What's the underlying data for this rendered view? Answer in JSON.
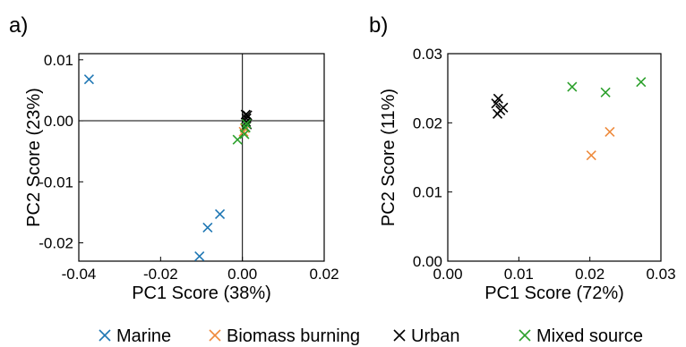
{
  "chart_data": [
    {
      "type": "scatter",
      "panel_label": "a)",
      "xlabel": "PC1 Score (38%)",
      "ylabel": "PC2 Score (23%)",
      "xlim": [
        -0.04,
        0.02
      ],
      "ylim": [
        -0.023,
        0.011
      ],
      "xticks": [
        -0.04,
        -0.02,
        0.0,
        0.02
      ],
      "xtick_labels": [
        "-0.04",
        "-0.02",
        "0.00",
        "0.02"
      ],
      "yticks": [
        0.01,
        0.0,
        -0.01,
        -0.02
      ],
      "ytick_labels": [
        "0.01",
        "0.00",
        "-0.01",
        "-0.02"
      ],
      "zero_lines": true,
      "grid": false,
      "series": [
        {
          "name": "Marine",
          "color": "#1f77b4",
          "points": [
            [
              -0.0375,
              0.0068
            ],
            [
              -0.0055,
              -0.0153
            ],
            [
              -0.0085,
              -0.0175
            ],
            [
              -0.0105,
              -0.0222
            ]
          ]
        },
        {
          "name": "Biomass burning",
          "color": "#ee8a3c",
          "points": [
            [
              0.0003,
              -0.0018
            ],
            [
              0.0006,
              -0.0012
            ]
          ]
        },
        {
          "name": "Urban",
          "color": "#000000",
          "points": [
            [
              0.0008,
              0.001
            ],
            [
              0.0012,
              0.0009
            ],
            [
              0.001,
              0.0004
            ],
            [
              0.0009,
              -0.0002
            ],
            [
              0.0011,
              -0.0006
            ]
          ]
        },
        {
          "name": "Mixed source",
          "color": "#2ca02c",
          "points": [
            [
              -0.0012,
              -0.0031
            ],
            [
              0.0005,
              -0.0022
            ],
            [
              0.0008,
              -0.0011
            ],
            [
              0.001,
              -0.0005
            ]
          ]
        }
      ]
    },
    {
      "type": "scatter",
      "panel_label": "b)",
      "xlabel": "PC1 Score (72%)",
      "ylabel": "PC2 Score (11%)",
      "xlim": [
        0.0,
        0.03
      ],
      "ylim": [
        0.0,
        0.03
      ],
      "xticks": [
        0.0,
        0.01,
        0.02,
        0.03
      ],
      "xtick_labels": [
        "0.00",
        "0.01",
        "0.02",
        "0.03"
      ],
      "yticks": [
        0.0,
        0.01,
        0.02,
        0.03
      ],
      "ytick_labels": [
        "0.00",
        "0.01",
        "0.02",
        "0.03"
      ],
      "zero_lines": false,
      "grid": false,
      "series": [
        {
          "name": "Marine",
          "color": "#1f77b4",
          "points": []
        },
        {
          "name": "Biomass burning",
          "color": "#ee8a3c",
          "points": [
            [
              0.0202,
              0.0153
            ],
            [
              0.0228,
              0.0187
            ]
          ]
        },
        {
          "name": "Urban",
          "color": "#000000",
          "points": [
            [
              0.0071,
              0.0235
            ],
            [
              0.0068,
              0.0228
            ],
            [
              0.0078,
              0.0222
            ],
            [
              0.0074,
              0.0218
            ],
            [
              0.007,
              0.0213
            ]
          ]
        },
        {
          "name": "Mixed source",
          "color": "#2ca02c",
          "points": [
            [
              0.0175,
              0.0252
            ],
            [
              0.0222,
              0.0244
            ],
            [
              0.0272,
              0.0259
            ]
          ]
        }
      ]
    }
  ],
  "legend": {
    "placement": "bottom",
    "items": [
      {
        "label": "Marine",
        "color": "#1f77b4"
      },
      {
        "label": "Biomass burning",
        "color": "#ee8a3c"
      },
      {
        "label": "Urban",
        "color": "#000000"
      },
      {
        "label": "Mixed source",
        "color": "#2ca02c"
      }
    ]
  }
}
